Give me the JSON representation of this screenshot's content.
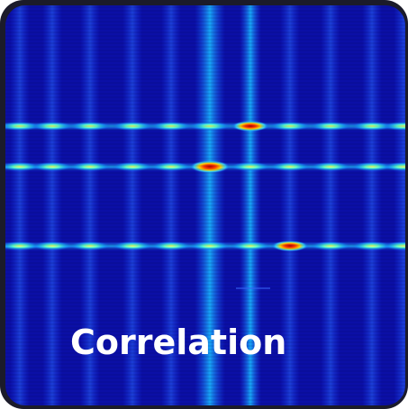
{
  "label": "Correlation"
}
